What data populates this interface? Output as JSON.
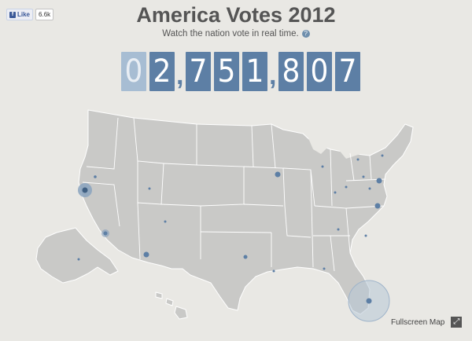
{
  "facebook": {
    "like_label": "Like",
    "count": "6.6k"
  },
  "header": {
    "title": "America Votes 2012",
    "subtitle": "Watch the nation vote in real time."
  },
  "counter": {
    "digits": [
      "0",
      "2",
      ",",
      "7",
      "5",
      "1",
      ",",
      "8",
      "0",
      "7"
    ]
  },
  "map": {
    "fill": "#c9c9c7",
    "stroke": "#ffffff",
    "dot_color": "#5d7fa5"
  },
  "footer": {
    "fullscreen_label": "Fullscreen Map"
  }
}
